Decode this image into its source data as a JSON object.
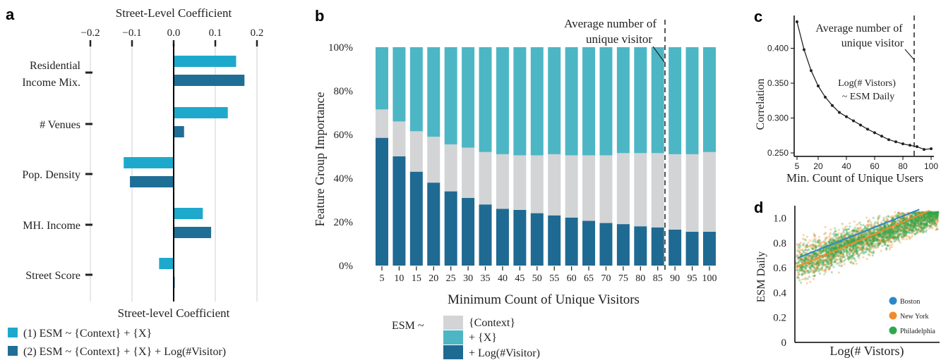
{
  "panel_labels": {
    "a": "a",
    "b": "b",
    "c": "c",
    "d": "d"
  },
  "colors": {
    "light_blue": "#1ea9cc",
    "dark_blue": "#1f6e96",
    "teal": "#4db6c5",
    "grey": "#d3d4d6",
    "navy": "#1f6a92",
    "boston": "#2e86c9",
    "newyork": "#f08c2c",
    "philadelphia": "#2ea84e"
  },
  "chart_data": [
    {
      "id": "a",
      "type": "bar",
      "orientation": "horizontal",
      "title": "Street-Level Coefficient",
      "xlabel": "Street-level Coefficient",
      "xticks": [
        "−0.2",
        "−0.1",
        "0.0",
        "0.1",
        "0.2"
      ],
      "xtick_values": [
        -0.2,
        -0.1,
        0.0,
        0.1,
        0.2
      ],
      "xlim": [
        -0.2,
        0.2
      ],
      "grid": true,
      "categories": [
        "Residential Income Mix.",
        "# Venues",
        "Pop. Density",
        "MH. Income",
        "Street Score"
      ],
      "category_lines": [
        [
          "Residential",
          "Income Mix."
        ],
        [
          "# Venues"
        ],
        [
          "Pop. Density"
        ],
        [
          "MH. Income"
        ],
        [
          "Street Score"
        ]
      ],
      "series": [
        {
          "name": "(1) ESM ~ {Context} + {X}",
          "color": "#1ea9cc",
          "values": [
            0.15,
            0.13,
            -0.12,
            0.07,
            -0.035
          ]
        },
        {
          "name": "(2) ESM ~ {Context} + {X} + Log(#Visitor)",
          "color": "#1f6e96",
          "values": [
            0.17,
            0.025,
            -0.105,
            0.09,
            0.0
          ]
        }
      ],
      "legend_placement": "bottom-left"
    },
    {
      "id": "b",
      "type": "bar",
      "stacked": true,
      "xlabel": "Minimum Count of Unique Visitors",
      "ylabel": "Feature Group Importance",
      "ylim": [
        0,
        100
      ],
      "yticks": [
        "0%",
        "20%",
        "40%",
        "60%",
        "80%",
        "100%"
      ],
      "categories": [
        "5",
        "10",
        "15",
        "20",
        "25",
        "30",
        "35",
        "40",
        "45",
        "50",
        "55",
        "60",
        "65",
        "70",
        "75",
        "80",
        "85",
        "90",
        "95",
        "100"
      ],
      "series": [
        {
          "name": "+ Log(#Visitor)",
          "color": "#1f6a92",
          "values": [
            58.5,
            50,
            43,
            38,
            34,
            31,
            28,
            26,
            25.5,
            24,
            23,
            22,
            20.5,
            19.5,
            19,
            18,
            17.5,
            16.5,
            15.5,
            15.5
          ]
        },
        {
          "name": "{Context}",
          "color": "#d3d4d6",
          "values": [
            13,
            16,
            18.5,
            21,
            21.5,
            23,
            24,
            25,
            25,
            26.5,
            28,
            28.5,
            30,
            31,
            32.5,
            33.5,
            34,
            34.5,
            35.5,
            36.5
          ]
        },
        {
          "name": "+ {X}",
          "color": "#4db6c5",
          "values": [
            28.5,
            34,
            38.5,
            41,
            44.5,
            46,
            48,
            49,
            49.5,
            49.5,
            49,
            49.5,
            49.5,
            49.5,
            48.5,
            48.5,
            48.5,
            49,
            49,
            48
          ]
        }
      ],
      "legend_prefix": "ESM ~",
      "legend_order": [
        "{Context}",
        "+ {X}",
        "+ Log(#Visitor)"
      ],
      "annotation": {
        "text_lines": [
          "Average number of",
          "unique visitor"
        ],
        "x_position": 87
      }
    },
    {
      "id": "c",
      "type": "line",
      "xlabel": "Min. Count of Unique Users",
      "ylabel": "Correlation",
      "xlim": [
        3,
        102
      ],
      "ylim": [
        0.245,
        0.447
      ],
      "xticks": [
        5,
        20,
        40,
        60,
        80,
        100
      ],
      "yticks": [
        "0.250",
        "0.300",
        "0.350",
        "0.400"
      ],
      "ytick_values": [
        0.25,
        0.3,
        0.35,
        0.4
      ],
      "x": [
        5,
        10,
        15,
        20,
        25,
        30,
        35,
        40,
        45,
        50,
        55,
        60,
        65,
        70,
        75,
        80,
        85,
        90,
        95,
        100
      ],
      "series": [
        {
          "name": "Log(# Vistors) ~ ESM Daily",
          "values": [
            0.438,
            0.398,
            0.368,
            0.346,
            0.33,
            0.318,
            0.308,
            0.302,
            0.296,
            0.29,
            0.284,
            0.279,
            0.274,
            0.269,
            0.266,
            0.263,
            0.261,
            0.259,
            0.255,
            0.256
          ]
        }
      ],
      "annotation_lines": [
        "Average number of",
        "unique visitor"
      ],
      "annotation_x": 90,
      "inset_lines": [
        "Log(# Vistors)",
        "~ ESM Daily"
      ]
    },
    {
      "id": "d",
      "type": "scatter",
      "xlabel": "Log(# Vistors)",
      "ylabel": "ESM Daily",
      "ylim": [
        0,
        1.1
      ],
      "yticks": [
        "0",
        "0.2",
        "0.4",
        "0.6",
        "0.8",
        "1.0"
      ],
      "ytick_values": [
        0,
        0.2,
        0.4,
        0.6,
        0.8,
        1.0
      ],
      "series": [
        {
          "name": "Boston",
          "color": "#2e86c9",
          "fit": [
            [
              0.02,
              0.68
            ],
            [
              0.86,
              1.07
            ]
          ]
        },
        {
          "name": "New York",
          "color": "#f08c2c",
          "fit": [
            [
              0.02,
              0.61
            ],
            [
              0.93,
              1.06
            ]
          ]
        },
        {
          "name": "Philadelphia",
          "color": "#2ea84e"
        }
      ],
      "legend_placement": "bottom-right"
    }
  ]
}
